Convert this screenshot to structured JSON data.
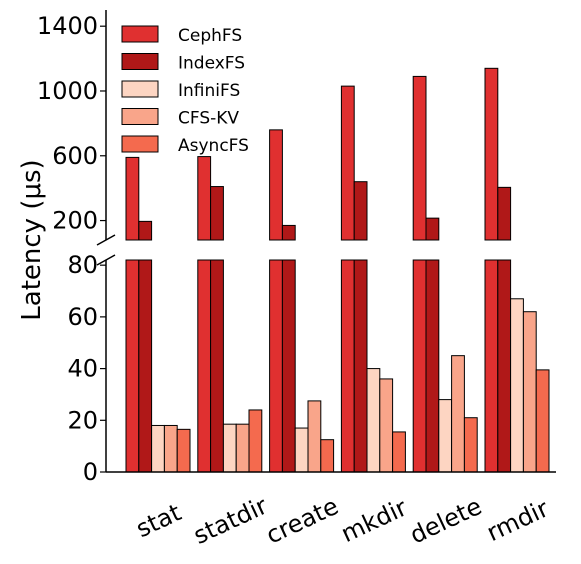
{
  "chart_data": {
    "type": "bar",
    "ylabel": "Latency (μs)",
    "categories": [
      "stat",
      "statdir",
      "create",
      "mkdir",
      "delete",
      "rmdir"
    ],
    "series": [
      {
        "name": "CephFS",
        "color": "#e03030",
        "values": [
          590,
          595,
          760,
          1030,
          1090,
          1140
        ]
      },
      {
        "name": "IndexFS",
        "color": "#b01818",
        "values": [
          195,
          410,
          170,
          440,
          215,
          405
        ]
      },
      {
        "name": "InfiniFS",
        "color": "#fdd5c2",
        "values": [
          18,
          18.5,
          17,
          40,
          28,
          67
        ]
      },
      {
        "name": "CFS-KV",
        "color": "#f9a58a",
        "values": [
          18,
          18.5,
          27.5,
          36,
          45,
          62
        ]
      },
      {
        "name": "AsyncFS",
        "color": "#f46a4e",
        "values": [
          16.5,
          24,
          12.5,
          15.5,
          21,
          39.5
        ]
      }
    ],
    "axes": {
      "upper": {
        "ylim": [
          80,
          1500
        ],
        "ticks": [
          200,
          600,
          1000,
          1400
        ],
        "tick_labels": [
          "200",
          "600",
          "1000",
          "1400"
        ]
      },
      "lower": {
        "ylim": [
          0,
          82
        ],
        "ticks": [
          0,
          20,
          40,
          60,
          80
        ],
        "tick_labels": [
          "0",
          "20",
          "40",
          "60",
          "80"
        ]
      }
    },
    "broken_axis": true,
    "legend_position": "top-left",
    "grid": false
  }
}
